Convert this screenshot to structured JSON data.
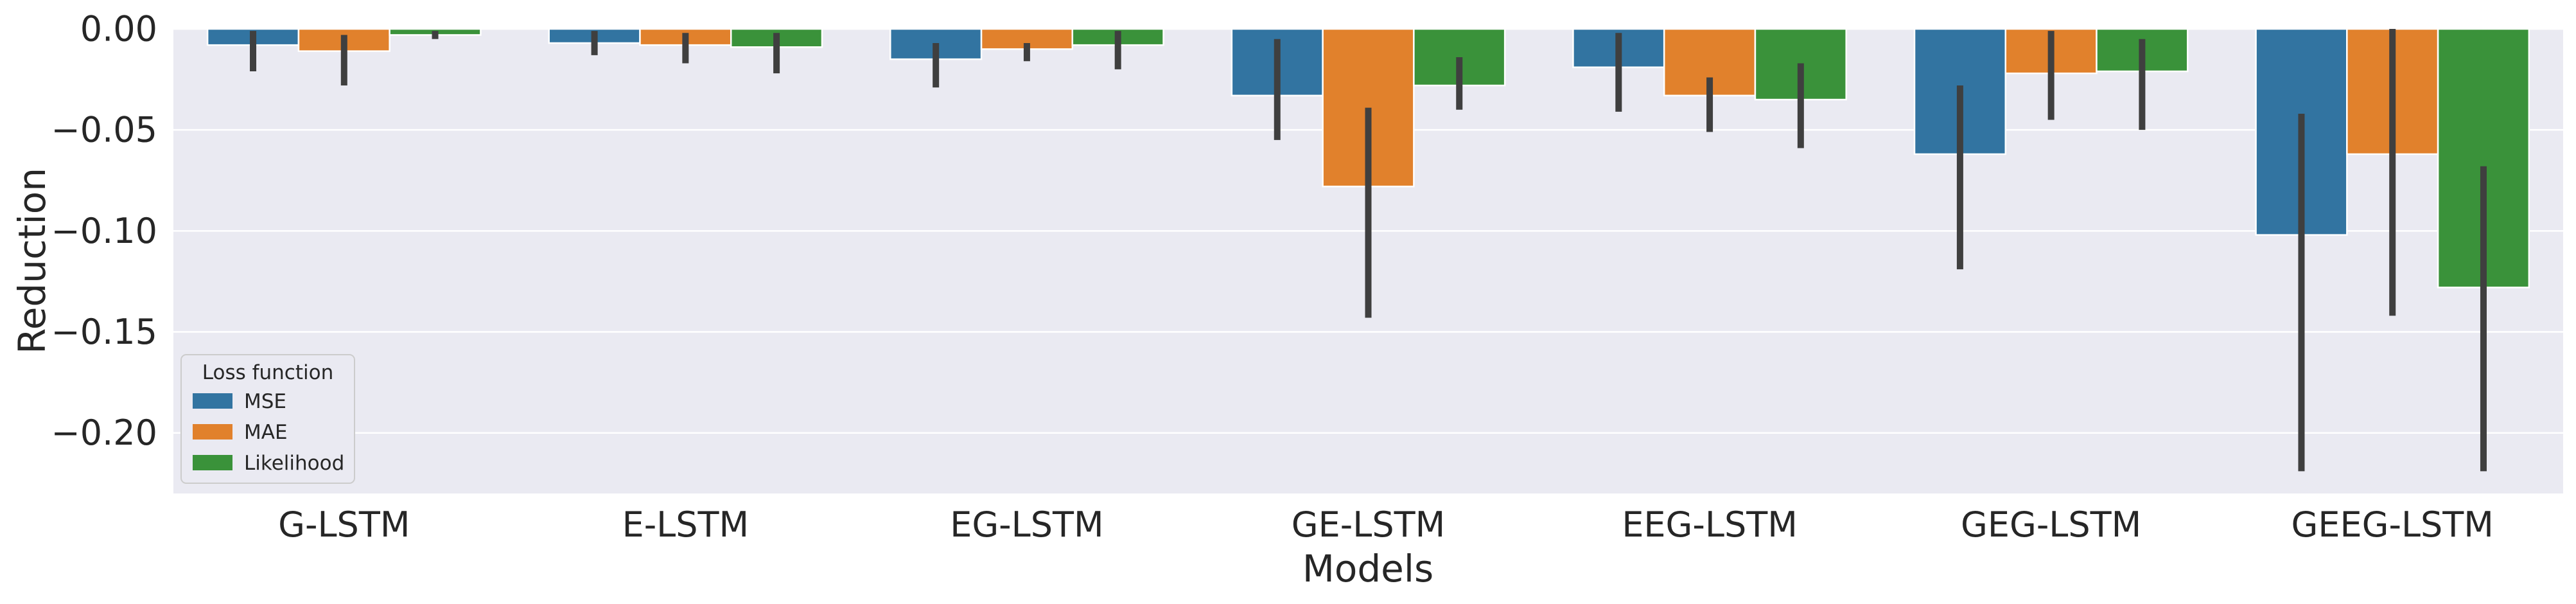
{
  "chart_data": {
    "type": "bar",
    "xlabel": "Models",
    "ylabel": "Reduction",
    "ylim": [
      -0.23,
      0.0
    ],
    "yticks": [
      0.0,
      -0.05,
      -0.1,
      -0.15,
      -0.2
    ],
    "ytick_labels": [
      "0.00",
      "−0.05",
      "−0.10",
      "−0.15",
      "−0.20"
    ],
    "grid": true,
    "legend_placement": "lower-left",
    "legend_title": "Loss function",
    "categories": [
      "G-LSTM",
      "E-LSTM",
      "EG-LSTM",
      "GE-LSTM",
      "EEG-LSTM",
      "GEG-LSTM",
      "GEEG-LSTM"
    ],
    "series": [
      {
        "name": "MSE",
        "color": "#3274a1",
        "values": [
          -0.008,
          -0.007,
          -0.015,
          -0.033,
          -0.019,
          -0.062,
          -0.102
        ],
        "err_low": [
          -0.021,
          -0.013,
          -0.029,
          -0.055,
          -0.041,
          -0.119,
          -0.219
        ],
        "err_high": [
          -0.001,
          -0.001,
          -0.007,
          -0.005,
          -0.002,
          -0.028,
          -0.042
        ]
      },
      {
        "name": "MAE",
        "color": "#e1812c",
        "values": [
          -0.011,
          -0.008,
          -0.01,
          -0.078,
          -0.033,
          -0.022,
          -0.062
        ],
        "err_low": [
          -0.028,
          -0.017,
          -0.016,
          -0.143,
          -0.051,
          -0.045,
          -0.142
        ],
        "err_high": [
          -0.003,
          -0.002,
          -0.007,
          -0.039,
          -0.024,
          -0.001,
          0.0
        ]
      },
      {
        "name": "Likelihood",
        "color": "#3a923a",
        "values": [
          -0.003,
          -0.009,
          -0.008,
          -0.028,
          -0.035,
          -0.021,
          -0.128
        ],
        "err_low": [
          -0.005,
          -0.022,
          -0.02,
          -0.04,
          -0.059,
          -0.05,
          -0.219
        ],
        "err_high": [
          -0.001,
          -0.002,
          -0.001,
          -0.014,
          -0.017,
          -0.005,
          -0.068
        ]
      }
    ]
  }
}
